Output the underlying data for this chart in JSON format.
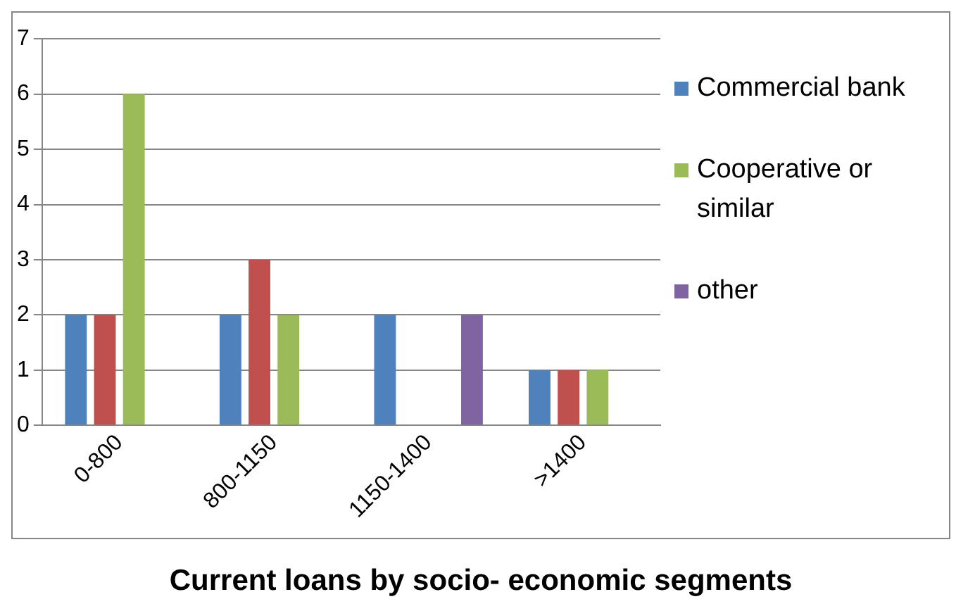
{
  "chart_data": {
    "type": "bar",
    "title": "Current loans by socio- economic segments",
    "categories": [
      "0-800",
      "800-1150",
      "1150-1400",
      ">1400"
    ],
    "series": [
      {
        "name": "Commercial bank",
        "color": "#4f81bd",
        "values": [
          2,
          2,
          2,
          1
        ]
      },
      {
        "color": "#c0504d",
        "values": [
          2,
          3,
          null,
          1
        ]
      },
      {
        "name": "Cooperative or similar",
        "color": "#9bbb59",
        "values": [
          6,
          2,
          null,
          1
        ]
      },
      {
        "name": "other",
        "color": "#8064a2",
        "values": [
          null,
          null,
          2,
          null
        ]
      }
    ],
    "ylim": [
      0,
      7
    ],
    "yticks": [
      0,
      1,
      2,
      3,
      4,
      5,
      6,
      7
    ],
    "grid": "y",
    "legend": "right"
  }
}
